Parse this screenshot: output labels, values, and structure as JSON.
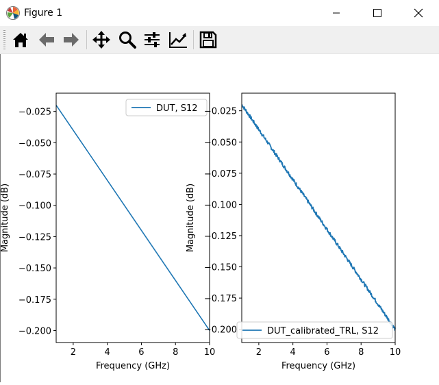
{
  "window": {
    "title": "Figure 1"
  },
  "toolbar": {
    "buttons": [
      {
        "name": "home-button",
        "icon": "home-icon"
      },
      {
        "name": "back-button",
        "icon": "arrow-left-icon"
      },
      {
        "name": "forward-button",
        "icon": "arrow-right-icon"
      },
      {
        "name": "pan-button",
        "icon": "move-icon"
      },
      {
        "name": "zoom-button",
        "icon": "magnifier-icon"
      },
      {
        "name": "configure-subplots-button",
        "icon": "sliders-icon"
      },
      {
        "name": "edit-axes-button",
        "icon": "line-chart-icon"
      },
      {
        "name": "save-button",
        "icon": "floppy-disk-icon"
      }
    ]
  },
  "colors": {
    "series": "#1f77b4"
  },
  "chart_data": [
    {
      "type": "line",
      "xlabel": "Frequency (GHz)",
      "ylabel": "Magnitude (dB)",
      "xlim": [
        1,
        10
      ],
      "ylim": [
        -0.2096,
        -0.0104
      ],
      "xticks": [
        2,
        4,
        6,
        8,
        10
      ],
      "xtick_labels": [
        "2",
        "4",
        "6",
        "8",
        "10"
      ],
      "yticks": [
        -0.025,
        -0.05,
        -0.075,
        -0.1,
        -0.125,
        -0.15,
        -0.175,
        -0.2
      ],
      "ytick_labels": [
        "−0.025",
        "−0.050",
        "−0.075",
        "−0.100",
        "−0.125",
        "−0.150",
        "−0.175",
        "−0.200"
      ],
      "grid": false,
      "legend_position": "top-right",
      "series": [
        {
          "name": "DUT, S12",
          "x": [
            1,
            10
          ],
          "y": [
            -0.02,
            -0.2
          ],
          "noisy": false
        }
      ]
    },
    {
      "type": "line",
      "xlabel": "Frequency (GHz)",
      "ylabel": "Magnitude (dB)",
      "xlim": [
        1,
        10
      ],
      "ylim": [
        -0.2106,
        -0.0109
      ],
      "xticks": [
        2,
        4,
        6,
        8,
        10
      ],
      "xtick_labels": [
        "2",
        "4",
        "6",
        "8",
        "10"
      ],
      "yticks": [
        -0.025,
        -0.05,
        -0.075,
        -0.1,
        -0.125,
        -0.15,
        -0.175,
        -0.2
      ],
      "ytick_labels": [
        "−0.025",
        "−0.050",
        "−0.075",
        "−0.100",
        "−0.125",
        "−0.150",
        "−0.175",
        "−0.200"
      ],
      "grid": false,
      "legend_position": "bottom-right",
      "series": [
        {
          "name": "DUT_calibrated_TRL, S12",
          "x": [
            1,
            10
          ],
          "y": [
            -0.02,
            -0.2
          ],
          "noisy": true
        }
      ]
    }
  ]
}
